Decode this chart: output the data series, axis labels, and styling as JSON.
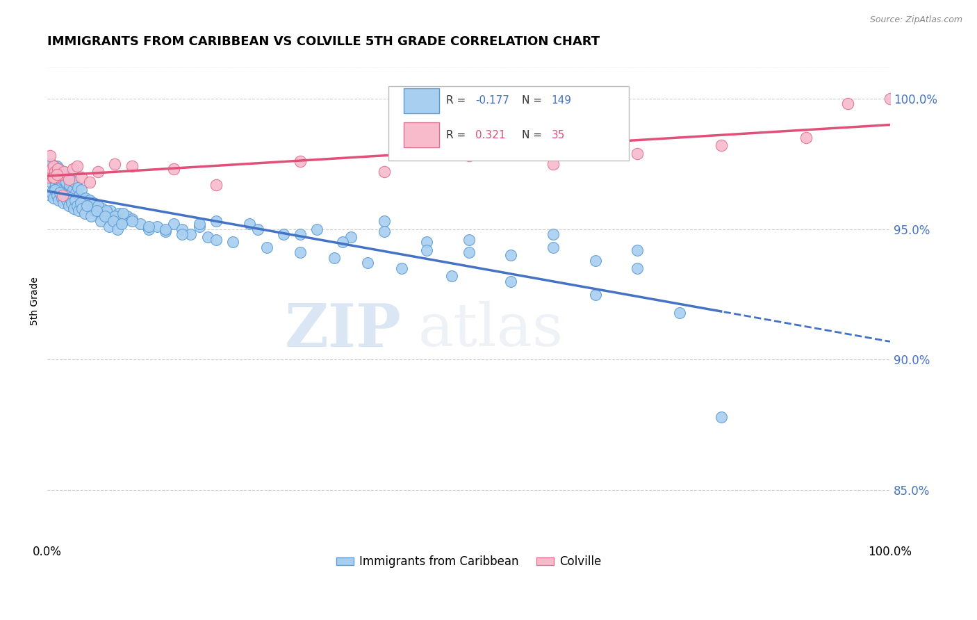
{
  "title": "IMMIGRANTS FROM CARIBBEAN VS COLVILLE 5TH GRADE CORRELATION CHART",
  "source": "Source: ZipAtlas.com",
  "ylabel": "5th Grade",
  "right_yticks": [
    85.0,
    90.0,
    95.0,
    100.0
  ],
  "blue_color": "#A8CFF0",
  "blue_edge_color": "#5B9BD5",
  "blue_line_color": "#4472C4",
  "pink_color": "#F8BBCC",
  "pink_edge_color": "#E07090",
  "pink_line_color": "#E05078",
  "legend_blue_label": "Immigrants from Caribbean",
  "legend_pink_label": "Colville",
  "R_blue": -0.177,
  "N_blue": 149,
  "R_pink": 0.321,
  "N_pink": 35,
  "watermark_zip": "ZIP",
  "watermark_atlas": "atlas",
  "blue_scatter_x": [
    0.002,
    0.003,
    0.004,
    0.005,
    0.006,
    0.007,
    0.008,
    0.009,
    0.01,
    0.011,
    0.012,
    0.013,
    0.014,
    0.015,
    0.016,
    0.017,
    0.018,
    0.019,
    0.02,
    0.021,
    0.022,
    0.023,
    0.024,
    0.025,
    0.026,
    0.027,
    0.028,
    0.03,
    0.032,
    0.034,
    0.036,
    0.038,
    0.04,
    0.042,
    0.045,
    0.048,
    0.05,
    0.055,
    0.06,
    0.065,
    0.07,
    0.075,
    0.08,
    0.085,
    0.09,
    0.095,
    0.1,
    0.11,
    0.12,
    0.13,
    0.14,
    0.15,
    0.16,
    0.17,
    0.18,
    0.19,
    0.2,
    0.22,
    0.24,
    0.26,
    0.28,
    0.3,
    0.32,
    0.34,
    0.36,
    0.38,
    0.4,
    0.42,
    0.45,
    0.48,
    0.5,
    0.55,
    0.6,
    0.65,
    0.7,
    0.75,
    0.8,
    0.004,
    0.006,
    0.008,
    0.01,
    0.012,
    0.014,
    0.016,
    0.018,
    0.02,
    0.022,
    0.024,
    0.026,
    0.028,
    0.03,
    0.032,
    0.034,
    0.036,
    0.038,
    0.04,
    0.045,
    0.05,
    0.055,
    0.06,
    0.07,
    0.08,
    0.09,
    0.1,
    0.12,
    0.14,
    0.16,
    0.18,
    0.2,
    0.25,
    0.3,
    0.35,
    0.4,
    0.45,
    0.5,
    0.55,
    0.6,
    0.65,
    0.7,
    0.003,
    0.005,
    0.007,
    0.009,
    0.011,
    0.013,
    0.015,
    0.017,
    0.019,
    0.021,
    0.023,
    0.025,
    0.027,
    0.029,
    0.031,
    0.033,
    0.035,
    0.037,
    0.039,
    0.041,
    0.044,
    0.047,
    0.052,
    0.058,
    0.063,
    0.068,
    0.073,
    0.078,
    0.083,
    0.088
  ],
  "blue_scatter_y": [
    97.2,
    97.0,
    96.8,
    97.5,
    97.3,
    96.5,
    97.1,
    96.9,
    96.7,
    97.4,
    96.6,
    97.2,
    96.4,
    97.0,
    96.2,
    96.8,
    97.1,
    96.5,
    96.3,
    96.9,
    97.0,
    96.7,
    96.4,
    96.8,
    96.5,
    96.3,
    96.6,
    96.4,
    96.2,
    96.5,
    96.3,
    96.1,
    96.0,
    96.2,
    95.9,
    96.1,
    95.8,
    95.7,
    95.6,
    95.8,
    95.5,
    95.7,
    95.4,
    95.6,
    95.3,
    95.5,
    95.4,
    95.2,
    95.0,
    95.1,
    94.9,
    95.2,
    95.0,
    94.8,
    95.1,
    94.7,
    95.3,
    94.5,
    95.2,
    94.3,
    94.8,
    94.1,
    95.0,
    93.9,
    94.7,
    93.7,
    95.3,
    93.5,
    94.5,
    93.2,
    94.1,
    93.0,
    94.8,
    92.5,
    94.2,
    91.8,
    87.8,
    97.5,
    97.3,
    97.4,
    97.2,
    97.1,
    97.3,
    97.0,
    96.9,
    97.2,
    96.8,
    97.0,
    96.7,
    96.9,
    96.5,
    96.8,
    96.4,
    96.6,
    96.3,
    96.5,
    96.2,
    96.1,
    96.0,
    95.9,
    95.7,
    95.5,
    95.6,
    95.3,
    95.1,
    95.0,
    94.8,
    95.2,
    94.6,
    95.0,
    94.8,
    94.5,
    94.9,
    94.2,
    94.6,
    94.0,
    94.3,
    93.8,
    93.5,
    96.3,
    96.4,
    96.2,
    96.5,
    96.3,
    96.1,
    96.4,
    96.2,
    96.0,
    96.3,
    96.1,
    95.9,
    96.2,
    96.0,
    95.8,
    96.1,
    95.9,
    95.7,
    96.0,
    95.8,
    95.6,
    95.9,
    95.5,
    95.7,
    95.3,
    95.5,
    95.1,
    95.3,
    95.0,
    95.2
  ],
  "pink_scatter_x": [
    0.002,
    0.003,
    0.004,
    0.005,
    0.006,
    0.007,
    0.008,
    0.009,
    0.01,
    0.012,
    0.015,
    0.02,
    0.025,
    0.03,
    0.04,
    0.05,
    0.06,
    0.08,
    0.1,
    0.15,
    0.2,
    0.3,
    0.4,
    0.5,
    0.6,
    0.7,
    0.8,
    0.9,
    0.95,
    1.0,
    0.003,
    0.007,
    0.011,
    0.018,
    0.035
  ],
  "pink_scatter_y": [
    97.0,
    97.2,
    97.1,
    97.3,
    97.0,
    97.4,
    97.1,
    97.2,
    97.0,
    97.3,
    97.1,
    97.2,
    96.9,
    97.3,
    97.0,
    96.8,
    97.2,
    97.5,
    97.4,
    97.3,
    96.7,
    97.6,
    97.2,
    97.8,
    97.5,
    97.9,
    98.2,
    98.5,
    99.8,
    100.0,
    97.8,
    97.0,
    97.1,
    96.3,
    97.4
  ]
}
